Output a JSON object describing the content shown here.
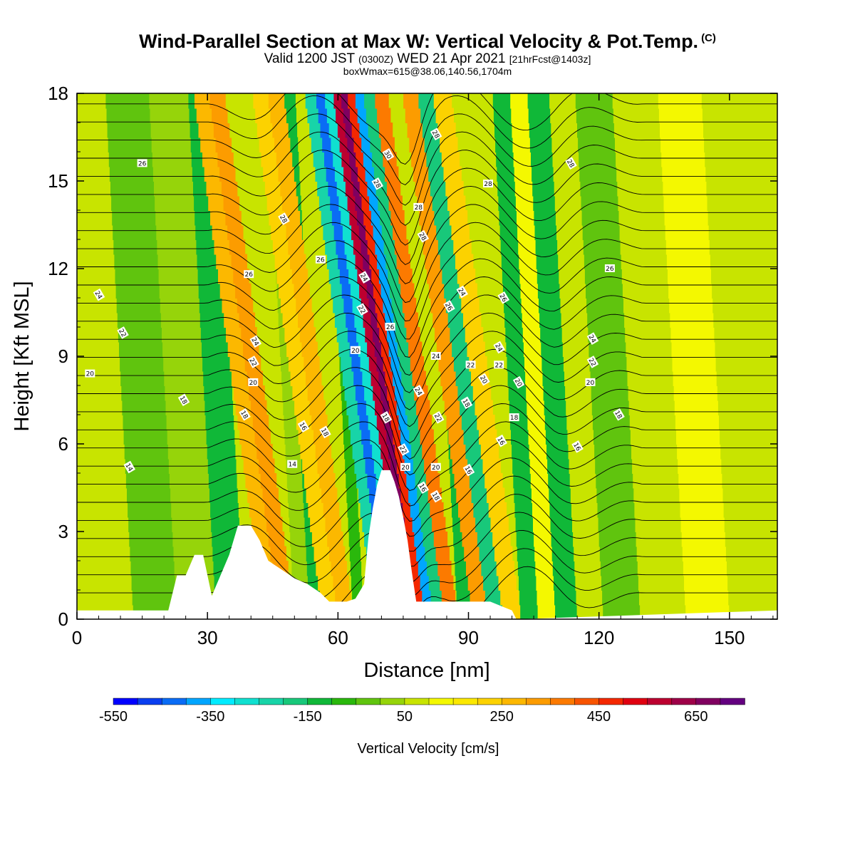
{
  "title": {
    "main": "Wind-Parallel Section at Max W: Vertical Velocity & Pot.Temp.",
    "copyright": "(C)",
    "line2_a": "Valid 1200 JST",
    "line2_b": "(0300Z)",
    "line2_c": "WED 21 Apr 2021",
    "line2_d": "[21hrFcst@1403z]",
    "line3": "boxWmax=615@38.06,140.56,1704m"
  },
  "chart_data": {
    "type": "heatmap",
    "title": "Wind-Parallel Section at Max W: Vertical Velocity & Pot.Temp.",
    "xlabel": "Distance [nm]",
    "ylabel": "Height [Kft MSL]",
    "xlim": [
      0,
      161
    ],
    "ylim": [
      0,
      18
    ],
    "x_ticks": [
      0,
      30,
      60,
      90,
      120,
      150
    ],
    "y_ticks": [
      0,
      3,
      6,
      9,
      12,
      15,
      18
    ],
    "colorbar": {
      "title": "Vertical Velocity [cm/s]",
      "min": -550,
      "max": 750,
      "step": 50,
      "tick_labels": [
        -550,
        -350,
        -150,
        50,
        250,
        450,
        650
      ],
      "colors": [
        "#0000ff",
        "#0a3ef0",
        "#0a6cf5",
        "#00a6ff",
        "#00ecff",
        "#10e0d0",
        "#18d4a8",
        "#18c87a",
        "#10b838",
        "#2ab80c",
        "#60c40e",
        "#96d40a",
        "#c8e400",
        "#f4f800",
        "#fbe800",
        "#fcd200",
        "#fcb800",
        "#fc9c00",
        "#fc7a00",
        "#f85400",
        "#f42800",
        "#e00010",
        "#bc0030",
        "#9e0048",
        "#800060",
        "#640080"
      ]
    },
    "terrain": [
      {
        "x": 21,
        "top": 0.3
      },
      {
        "x": 23,
        "top": 1.5
      },
      {
        "x": 25,
        "top": 1.5
      },
      {
        "x": 27,
        "top": 2.2
      },
      {
        "x": 29,
        "top": 2.2
      },
      {
        "x": 31,
        "top": 0.8
      },
      {
        "x": 33,
        "top": 1.5
      },
      {
        "x": 35,
        "top": 2.2
      },
      {
        "x": 37,
        "top": 3.2
      },
      {
        "x": 40,
        "top": 3.2
      },
      {
        "x": 42,
        "top": 2.7
      },
      {
        "x": 44,
        "top": 2.0
      },
      {
        "x": 47,
        "top": 1.7
      },
      {
        "x": 50,
        "top": 1.4
      },
      {
        "x": 53,
        "top": 1.2
      },
      {
        "x": 56,
        "top": 0.9
      },
      {
        "x": 58,
        "top": 0.6
      },
      {
        "x": 60,
        "top": 0.6
      },
      {
        "x": 62,
        "top": 0.6
      },
      {
        "x": 64,
        "top": 0.7
      },
      {
        "x": 66,
        "top": 1.2
      },
      {
        "x": 67,
        "top": 2.8
      },
      {
        "x": 68,
        "top": 3.8
      },
      {
        "x": 69,
        "top": 4.6
      },
      {
        "x": 70,
        "top": 5.1
      },
      {
        "x": 72,
        "top": 5.1
      },
      {
        "x": 73,
        "top": 4.7
      },
      {
        "x": 74,
        "top": 4.2
      },
      {
        "x": 75,
        "top": 3.5
      },
      {
        "x": 76,
        "top": 2.7
      },
      {
        "x": 77,
        "top": 1.6
      },
      {
        "x": 78,
        "top": 0.6
      },
      {
        "x": 80,
        "top": 0.6
      },
      {
        "x": 85,
        "top": 0.6
      },
      {
        "x": 95,
        "top": 0.6
      },
      {
        "x": 100,
        "top": 0.3
      },
      {
        "x": 101,
        "top": 0.0
      }
    ],
    "w_bands": [
      {
        "x": 8,
        "w": 60
      },
      {
        "x": 18,
        "w": -40
      },
      {
        "x": 28,
        "w": 40
      },
      {
        "x": 36,
        "w": -130
      },
      {
        "x": 41,
        "w": 80
      },
      {
        "x": 45,
        "w": 260
      },
      {
        "x": 48,
        "w": 320
      },
      {
        "x": 52,
        "w": 10
      },
      {
        "x": 55,
        "w": -130
      },
      {
        "x": 58,
        "w": 230
      },
      {
        "x": 62,
        "w": 280
      },
      {
        "x": 65,
        "w": -60
      },
      {
        "x": 67,
        "w": 70
      },
      {
        "x": 70,
        "w": -230
      },
      {
        "x": 72,
        "w": -420
      },
      {
        "x": 74,
        "w": -300
      },
      {
        "x": 76,
        "w": 560
      },
      {
        "x": 77.5,
        "w": 650
      },
      {
        "x": 79,
        "w": 480
      },
      {
        "x": 81,
        "w": -400
      },
      {
        "x": 83,
        "w": -200
      },
      {
        "x": 86,
        "w": 380
      },
      {
        "x": 89,
        "w": -150
      },
      {
        "x": 93,
        "w": 330
      },
      {
        "x": 96,
        "w": -160
      },
      {
        "x": 100,
        "w": 240
      },
      {
        "x": 104,
        "w": -120
      },
      {
        "x": 108,
        "w": 140
      },
      {
        "x": 112,
        "w": -110
      },
      {
        "x": 118,
        "w": 60
      },
      {
        "x": 124,
        "w": -40
      },
      {
        "x": 135,
        "w": 60
      },
      {
        "x": 145,
        "w": 110
      },
      {
        "x": 155,
        "w": 60
      }
    ],
    "isentrope_labels": [
      {
        "x": 15,
        "y": 15.6,
        "t": "26"
      },
      {
        "x": 5,
        "y": 11.1,
        "t": "24"
      },
      {
        "x": 10.5,
        "y": 9.8,
        "t": "22"
      },
      {
        "x": 3,
        "y": 8.4,
        "t": "20"
      },
      {
        "x": 24.5,
        "y": 7.5,
        "t": "18"
      },
      {
        "x": 12,
        "y": 5.2,
        "t": "14"
      },
      {
        "x": 39.5,
        "y": 11.8,
        "t": "26"
      },
      {
        "x": 41,
        "y": 9.5,
        "t": "24"
      },
      {
        "x": 40.5,
        "y": 8.8,
        "t": "22"
      },
      {
        "x": 40.5,
        "y": 8.1,
        "t": "20"
      },
      {
        "x": 38.5,
        "y": 7.0,
        "t": "18"
      },
      {
        "x": 47.5,
        "y": 13.7,
        "t": "28"
      },
      {
        "x": 56,
        "y": 12.3,
        "t": "26"
      },
      {
        "x": 66,
        "y": 11.7,
        "t": "24"
      },
      {
        "x": 65.5,
        "y": 10.6,
        "t": "22"
      },
      {
        "x": 64,
        "y": 9.2,
        "t": "20"
      },
      {
        "x": 52,
        "y": 6.6,
        "t": "16"
      },
      {
        "x": 57,
        "y": 6.4,
        "t": "18"
      },
      {
        "x": 49.5,
        "y": 5.3,
        "t": "14"
      },
      {
        "x": 71.5,
        "y": 15.9,
        "t": "30"
      },
      {
        "x": 69,
        "y": 14.9,
        "t": "28"
      },
      {
        "x": 72,
        "y": 10.0,
        "t": "26"
      },
      {
        "x": 71,
        "y": 6.9,
        "t": "18"
      },
      {
        "x": 75,
        "y": 5.8,
        "t": "22"
      },
      {
        "x": 75.5,
        "y": 5.2,
        "t": "20"
      },
      {
        "x": 79.5,
        "y": 4.5,
        "t": "16"
      },
      {
        "x": 82.5,
        "y": 16.6,
        "t": "28"
      },
      {
        "x": 78.5,
        "y": 14.1,
        "t": "28"
      },
      {
        "x": 79.5,
        "y": 13.1,
        "t": "28"
      },
      {
        "x": 85.5,
        "y": 10.7,
        "t": "26"
      },
      {
        "x": 82.5,
        "y": 9.0,
        "t": "24"
      },
      {
        "x": 78.5,
        "y": 7.8,
        "t": "24"
      },
      {
        "x": 83,
        "y": 6.9,
        "t": "22"
      },
      {
        "x": 82.5,
        "y": 5.2,
        "t": "20"
      },
      {
        "x": 82.5,
        "y": 4.2,
        "t": "18"
      },
      {
        "x": 88.5,
        "y": 11.2,
        "t": "24"
      },
      {
        "x": 90.5,
        "y": 8.7,
        "t": "22"
      },
      {
        "x": 89.5,
        "y": 7.4,
        "t": "18"
      },
      {
        "x": 90,
        "y": 5.1,
        "t": "16"
      },
      {
        "x": 94.5,
        "y": 14.9,
        "t": "28"
      },
      {
        "x": 98,
        "y": 11.0,
        "t": "26"
      },
      {
        "x": 97,
        "y": 9.3,
        "t": "24"
      },
      {
        "x": 97,
        "y": 8.7,
        "t": "22"
      },
      {
        "x": 93.5,
        "y": 8.2,
        "t": "20"
      },
      {
        "x": 101.5,
        "y": 8.1,
        "t": "20"
      },
      {
        "x": 100.5,
        "y": 6.9,
        "t": "18"
      },
      {
        "x": 97.5,
        "y": 6.1,
        "t": "16"
      },
      {
        "x": 113.5,
        "y": 15.6,
        "t": "28"
      },
      {
        "x": 122.5,
        "y": 12.0,
        "t": "26"
      },
      {
        "x": 118.5,
        "y": 9.6,
        "t": "24"
      },
      {
        "x": 118.5,
        "y": 8.8,
        "t": "22"
      },
      {
        "x": 118,
        "y": 8.1,
        "t": "20"
      },
      {
        "x": 124.5,
        "y": 7.0,
        "t": "18"
      },
      {
        "x": 115,
        "y": 5.9,
        "t": "16"
      }
    ]
  }
}
